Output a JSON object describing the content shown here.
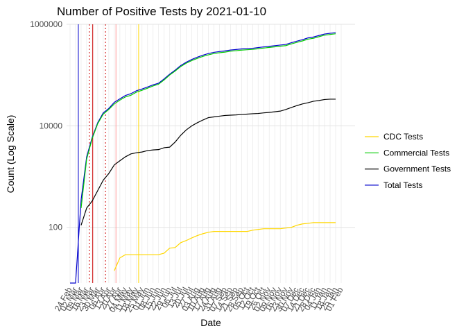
{
  "chart_data": {
    "type": "line",
    "title": "Number of Positive Tests by  2021-01-10",
    "x_label": "Date",
    "y_label": "Count (Log Scale)",
    "log_y": true,
    "grid": true,
    "legend_position": "right",
    "categories": [
      "24 Feb",
      "02 Mar",
      "09 Mar",
      "16 Mar",
      "23 Mar",
      "30 Mar",
      "06 Apr",
      "13 Apr",
      "20 Apr",
      "27 Apr",
      "04 May",
      "11 May",
      "18 May",
      "25 May",
      "01 Jun",
      "08 Jun",
      "15 Jun",
      "22 Jun",
      "29 Jun",
      "06 Jul",
      "13 Jul",
      "20 Jul",
      "27 Jul",
      "03 Aug",
      "10 Aug",
      "17 Aug",
      "24 Aug",
      "31 Aug",
      "07 Sep",
      "14 Sep",
      "21 Sep",
      "28 Sep",
      "05 Oct",
      "12 Oct",
      "19 Oct",
      "26 Oct",
      "02 Nov",
      "09 Nov",
      "16 Nov",
      "23 Nov",
      "30 Nov",
      "07 Dec",
      "14 Dec",
      "21 Dec",
      "28 Dec",
      "04 Jan",
      "11 Jan",
      "18 Jan",
      "25 Jan",
      "01 Feb"
    ],
    "ylim": [
      8,
      1000000
    ],
    "yticks": [
      100,
      10000,
      1000000
    ],
    "series": [
      {
        "name": "CDC Tests",
        "color": "#ffd700",
        "values": [
          null,
          null,
          null,
          null,
          null,
          null,
          null,
          null,
          14,
          25,
          29,
          29,
          29,
          29,
          29,
          29,
          29,
          31,
          39,
          40,
          50,
          55,
          62,
          69,
          75,
          80,
          83,
          83,
          83,
          83,
          83,
          83,
          83,
          88,
          91,
          94,
          94,
          94,
          94,
          97,
          100,
          110,
          117,
          120,
          124,
          124,
          124,
          124,
          124,
          null
        ]
      },
      {
        "name": "Commercial Tests",
        "color": "#00cc00",
        "values": [
          null,
          null,
          240,
          2200,
          5600,
          11000,
          17000,
          21000,
          27000,
          32000,
          37000,
          40000,
          46000,
          50000,
          55000,
          61000,
          66000,
          80000,
          100000,
          120000,
          147000,
          171000,
          193000,
          213000,
          233000,
          250000,
          265000,
          275000,
          283000,
          295000,
          302000,
          310000,
          315000,
          320000,
          330000,
          340000,
          350000,
          360000,
          370000,
          380000,
          410000,
          440000,
          470000,
          510000,
          530000,
          570000,
          610000,
          630000,
          650000,
          null
        ]
      },
      {
        "name": "Government Tests",
        "color": "#000000",
        "values": [
          null,
          null,
          110,
          240,
          330,
          530,
          850,
          1150,
          1700,
          2050,
          2450,
          2800,
          2950,
          3050,
          3250,
          3350,
          3400,
          3700,
          3800,
          4800,
          6500,
          8300,
          10000,
          11500,
          13000,
          14500,
          15000,
          15500,
          16000,
          16200,
          16400,
          16700,
          17000,
          17300,
          17500,
          18000,
          18400,
          18900,
          19500,
          21000,
          23000,
          25000,
          27000,
          28500,
          30500,
          31500,
          33000,
          33500,
          33500,
          null
        ]
      },
      {
        "name": "Total Tests",
        "color": "#0000cc",
        "values": [
          8,
          8,
          350,
          2450,
          5900,
          11500,
          18000,
          22000,
          29000,
          34000,
          39500,
          43000,
          49000,
          53000,
          58000,
          64000,
          69000,
          84000,
          104000,
          125000,
          154000,
          179000,
          203000,
          225000,
          246000,
          265000,
          280000,
          290000,
          299000,
          311000,
          318000,
          327000,
          332000,
          337000,
          348000,
          358000,
          368000,
          379000,
          390000,
          401000,
          433000,
          465000,
          497000,
          539000,
          561000,
          602000,
          643000,
          664000,
          684000,
          null
        ]
      }
    ],
    "vlines": [
      {
        "x": 1.5,
        "color": "#0000cc",
        "dashed": false
      },
      {
        "x": 3.5,
        "color": "#cc0000",
        "dashed": true
      },
      {
        "x": 4.1,
        "color": "#cc0000",
        "dashed": false
      },
      {
        "x": 6.4,
        "color": "#cc0000",
        "dashed": true
      },
      {
        "x": 8.3,
        "color": "#ff9999",
        "dashed": false
      },
      {
        "x": 12.4,
        "color": "#ffd700",
        "dashed": false
      }
    ]
  }
}
